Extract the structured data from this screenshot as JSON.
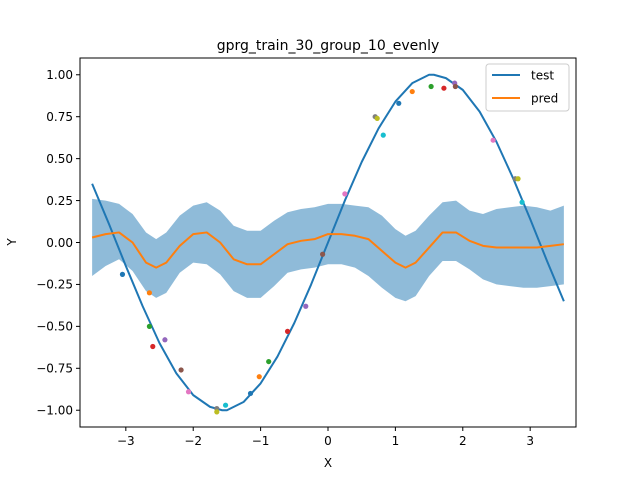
{
  "chart_data": {
    "type": "line",
    "title": "gprg_train_30_group_10_evenly",
    "xlabel": "X",
    "ylabel": "Y",
    "xlim": [
      -3.68,
      3.68
    ],
    "ylim": [
      -1.1,
      1.1
    ],
    "xticks": [
      -3,
      -2,
      -1,
      0,
      1,
      2,
      3
    ],
    "xtick_labels": [
      "−3",
      "−2",
      "−1",
      "0",
      "1",
      "2",
      "3"
    ],
    "yticks": [
      -1.0,
      -0.75,
      -0.5,
      -0.25,
      0.0,
      0.25,
      0.5,
      0.75,
      1.0
    ],
    "ytick_labels": [
      "−1.00",
      "−0.75",
      "−0.50",
      "−0.25",
      "0.00",
      "0.25",
      "0.50",
      "0.75",
      "1.00"
    ],
    "grid": false,
    "legend_position": "top-right",
    "series": [
      {
        "name": "test",
        "color": "#1f77b4",
        "x": [
          -3.5,
          -3.25,
          -3.0,
          -2.75,
          -2.5,
          -2.25,
          -2.0,
          -1.75,
          -1.57,
          -1.5,
          -1.25,
          -1.0,
          -0.75,
          -0.5,
          -0.25,
          0.0,
          0.25,
          0.5,
          0.75,
          1.0,
          1.25,
          1.5,
          1.57,
          1.75,
          2.0,
          2.25,
          2.5,
          2.75,
          3.0,
          3.25,
          3.5
        ],
        "y": [
          0.35,
          0.11,
          -0.14,
          -0.38,
          -0.6,
          -0.78,
          -0.91,
          -0.98,
          -1.0,
          -1.0,
          -0.95,
          -0.84,
          -0.68,
          -0.48,
          -0.25,
          0.0,
          0.25,
          0.48,
          0.68,
          0.84,
          0.95,
          1.0,
          1.0,
          0.98,
          0.91,
          0.78,
          0.6,
          0.38,
          0.14,
          -0.11,
          -0.35
        ]
      },
      {
        "name": "pred",
        "color": "#ff7f0e",
        "x": [
          -3.5,
          -3.3,
          -3.1,
          -2.9,
          -2.7,
          -2.55,
          -2.4,
          -2.2,
          -2.0,
          -1.8,
          -1.6,
          -1.4,
          -1.2,
          -1.0,
          -0.8,
          -0.6,
          -0.4,
          -0.2,
          0.0,
          0.2,
          0.4,
          0.6,
          0.8,
          1.0,
          1.15,
          1.3,
          1.5,
          1.7,
          1.9,
          2.1,
          2.3,
          2.5,
          2.7,
          2.9,
          3.1,
          3.3,
          3.5
        ],
        "y": [
          0.03,
          0.05,
          0.06,
          0.0,
          -0.12,
          -0.15,
          -0.12,
          -0.02,
          0.05,
          0.06,
          0.0,
          -0.1,
          -0.13,
          -0.13,
          -0.07,
          -0.01,
          0.01,
          0.02,
          0.05,
          0.05,
          0.04,
          0.02,
          -0.05,
          -0.12,
          -0.15,
          -0.12,
          -0.03,
          0.06,
          0.06,
          0.01,
          -0.02,
          -0.03,
          -0.03,
          -0.03,
          -0.03,
          -0.02,
          -0.01
        ]
      }
    ],
    "uncertainty_band": {
      "color": "#1f77b4",
      "opacity": 0.5,
      "x": [
        -3.5,
        -3.3,
        -3.1,
        -2.9,
        -2.7,
        -2.55,
        -2.4,
        -2.2,
        -2.0,
        -1.8,
        -1.6,
        -1.4,
        -1.2,
        -1.0,
        -0.8,
        -0.6,
        -0.4,
        -0.2,
        0.0,
        0.2,
        0.4,
        0.6,
        0.8,
        1.0,
        1.15,
        1.3,
        1.5,
        1.7,
        1.9,
        2.1,
        2.3,
        2.5,
        2.7,
        2.9,
        3.1,
        3.3,
        3.5
      ],
      "lower": [
        -0.2,
        -0.14,
        -0.1,
        -0.17,
        -0.29,
        -0.33,
        -0.3,
        -0.18,
        -0.12,
        -0.13,
        -0.19,
        -0.29,
        -0.33,
        -0.33,
        -0.26,
        -0.18,
        -0.16,
        -0.15,
        -0.13,
        -0.13,
        -0.15,
        -0.2,
        -0.27,
        -0.33,
        -0.35,
        -0.32,
        -0.2,
        -0.11,
        -0.11,
        -0.16,
        -0.22,
        -0.25,
        -0.26,
        -0.27,
        -0.27,
        -0.26,
        -0.25
      ],
      "upper": [
        0.26,
        0.25,
        0.23,
        0.17,
        0.06,
        0.02,
        0.06,
        0.16,
        0.22,
        0.24,
        0.19,
        0.1,
        0.07,
        0.07,
        0.13,
        0.18,
        0.2,
        0.21,
        0.23,
        0.23,
        0.22,
        0.21,
        0.16,
        0.08,
        0.04,
        0.07,
        0.16,
        0.24,
        0.25,
        0.19,
        0.17,
        0.2,
        0.21,
        0.22,
        0.21,
        0.19,
        0.22
      ]
    },
    "scatter_points": [
      {
        "x": -3.05,
        "y": -0.19,
        "color": "#1f77b4"
      },
      {
        "x": -2.65,
        "y": -0.3,
        "color": "#ff7f0e"
      },
      {
        "x": -2.65,
        "y": -0.5,
        "color": "#2ca02c"
      },
      {
        "x": -2.6,
        "y": -0.62,
        "color": "#d62728"
      },
      {
        "x": -2.42,
        "y": -0.58,
        "color": "#9467bd"
      },
      {
        "x": -2.18,
        "y": -0.76,
        "color": "#8c564b"
      },
      {
        "x": -2.07,
        "y": -0.89,
        "color": "#e377c2"
      },
      {
        "x": -1.65,
        "y": -0.99,
        "color": "#7f7f7f"
      },
      {
        "x": -1.65,
        "y": -1.01,
        "color": "#bcbd22"
      },
      {
        "x": -1.52,
        "y": -0.97,
        "color": "#17becf"
      },
      {
        "x": -1.15,
        "y": -0.9,
        "color": "#1f77b4"
      },
      {
        "x": -1.02,
        "y": -0.8,
        "color": "#ff7f0e"
      },
      {
        "x": -0.88,
        "y": -0.71,
        "color": "#2ca02c"
      },
      {
        "x": -0.6,
        "y": -0.53,
        "color": "#d62728"
      },
      {
        "x": -0.33,
        "y": -0.38,
        "color": "#9467bd"
      },
      {
        "x": -0.08,
        "y": -0.07,
        "color": "#8c564b"
      },
      {
        "x": 0.25,
        "y": 0.29,
        "color": "#e377c2"
      },
      {
        "x": 0.7,
        "y": 0.75,
        "color": "#7f7f7f"
      },
      {
        "x": 0.73,
        "y": 0.74,
        "color": "#bcbd22"
      },
      {
        "x": 0.82,
        "y": 0.64,
        "color": "#17becf"
      },
      {
        "x": 1.05,
        "y": 0.83,
        "color": "#1f77b4"
      },
      {
        "x": 1.25,
        "y": 0.9,
        "color": "#ff7f0e"
      },
      {
        "x": 1.53,
        "y": 0.93,
        "color": "#2ca02c"
      },
      {
        "x": 1.72,
        "y": 0.92,
        "color": "#d62728"
      },
      {
        "x": 1.88,
        "y": 0.95,
        "color": "#9467bd"
      },
      {
        "x": 1.89,
        "y": 0.93,
        "color": "#8c564b"
      },
      {
        "x": 2.45,
        "y": 0.61,
        "color": "#e377c2"
      },
      {
        "x": 2.78,
        "y": 0.38,
        "color": "#7f7f7f"
      },
      {
        "x": 2.82,
        "y": 0.38,
        "color": "#bcbd22"
      },
      {
        "x": 2.88,
        "y": 0.24,
        "color": "#17becf"
      }
    ]
  }
}
